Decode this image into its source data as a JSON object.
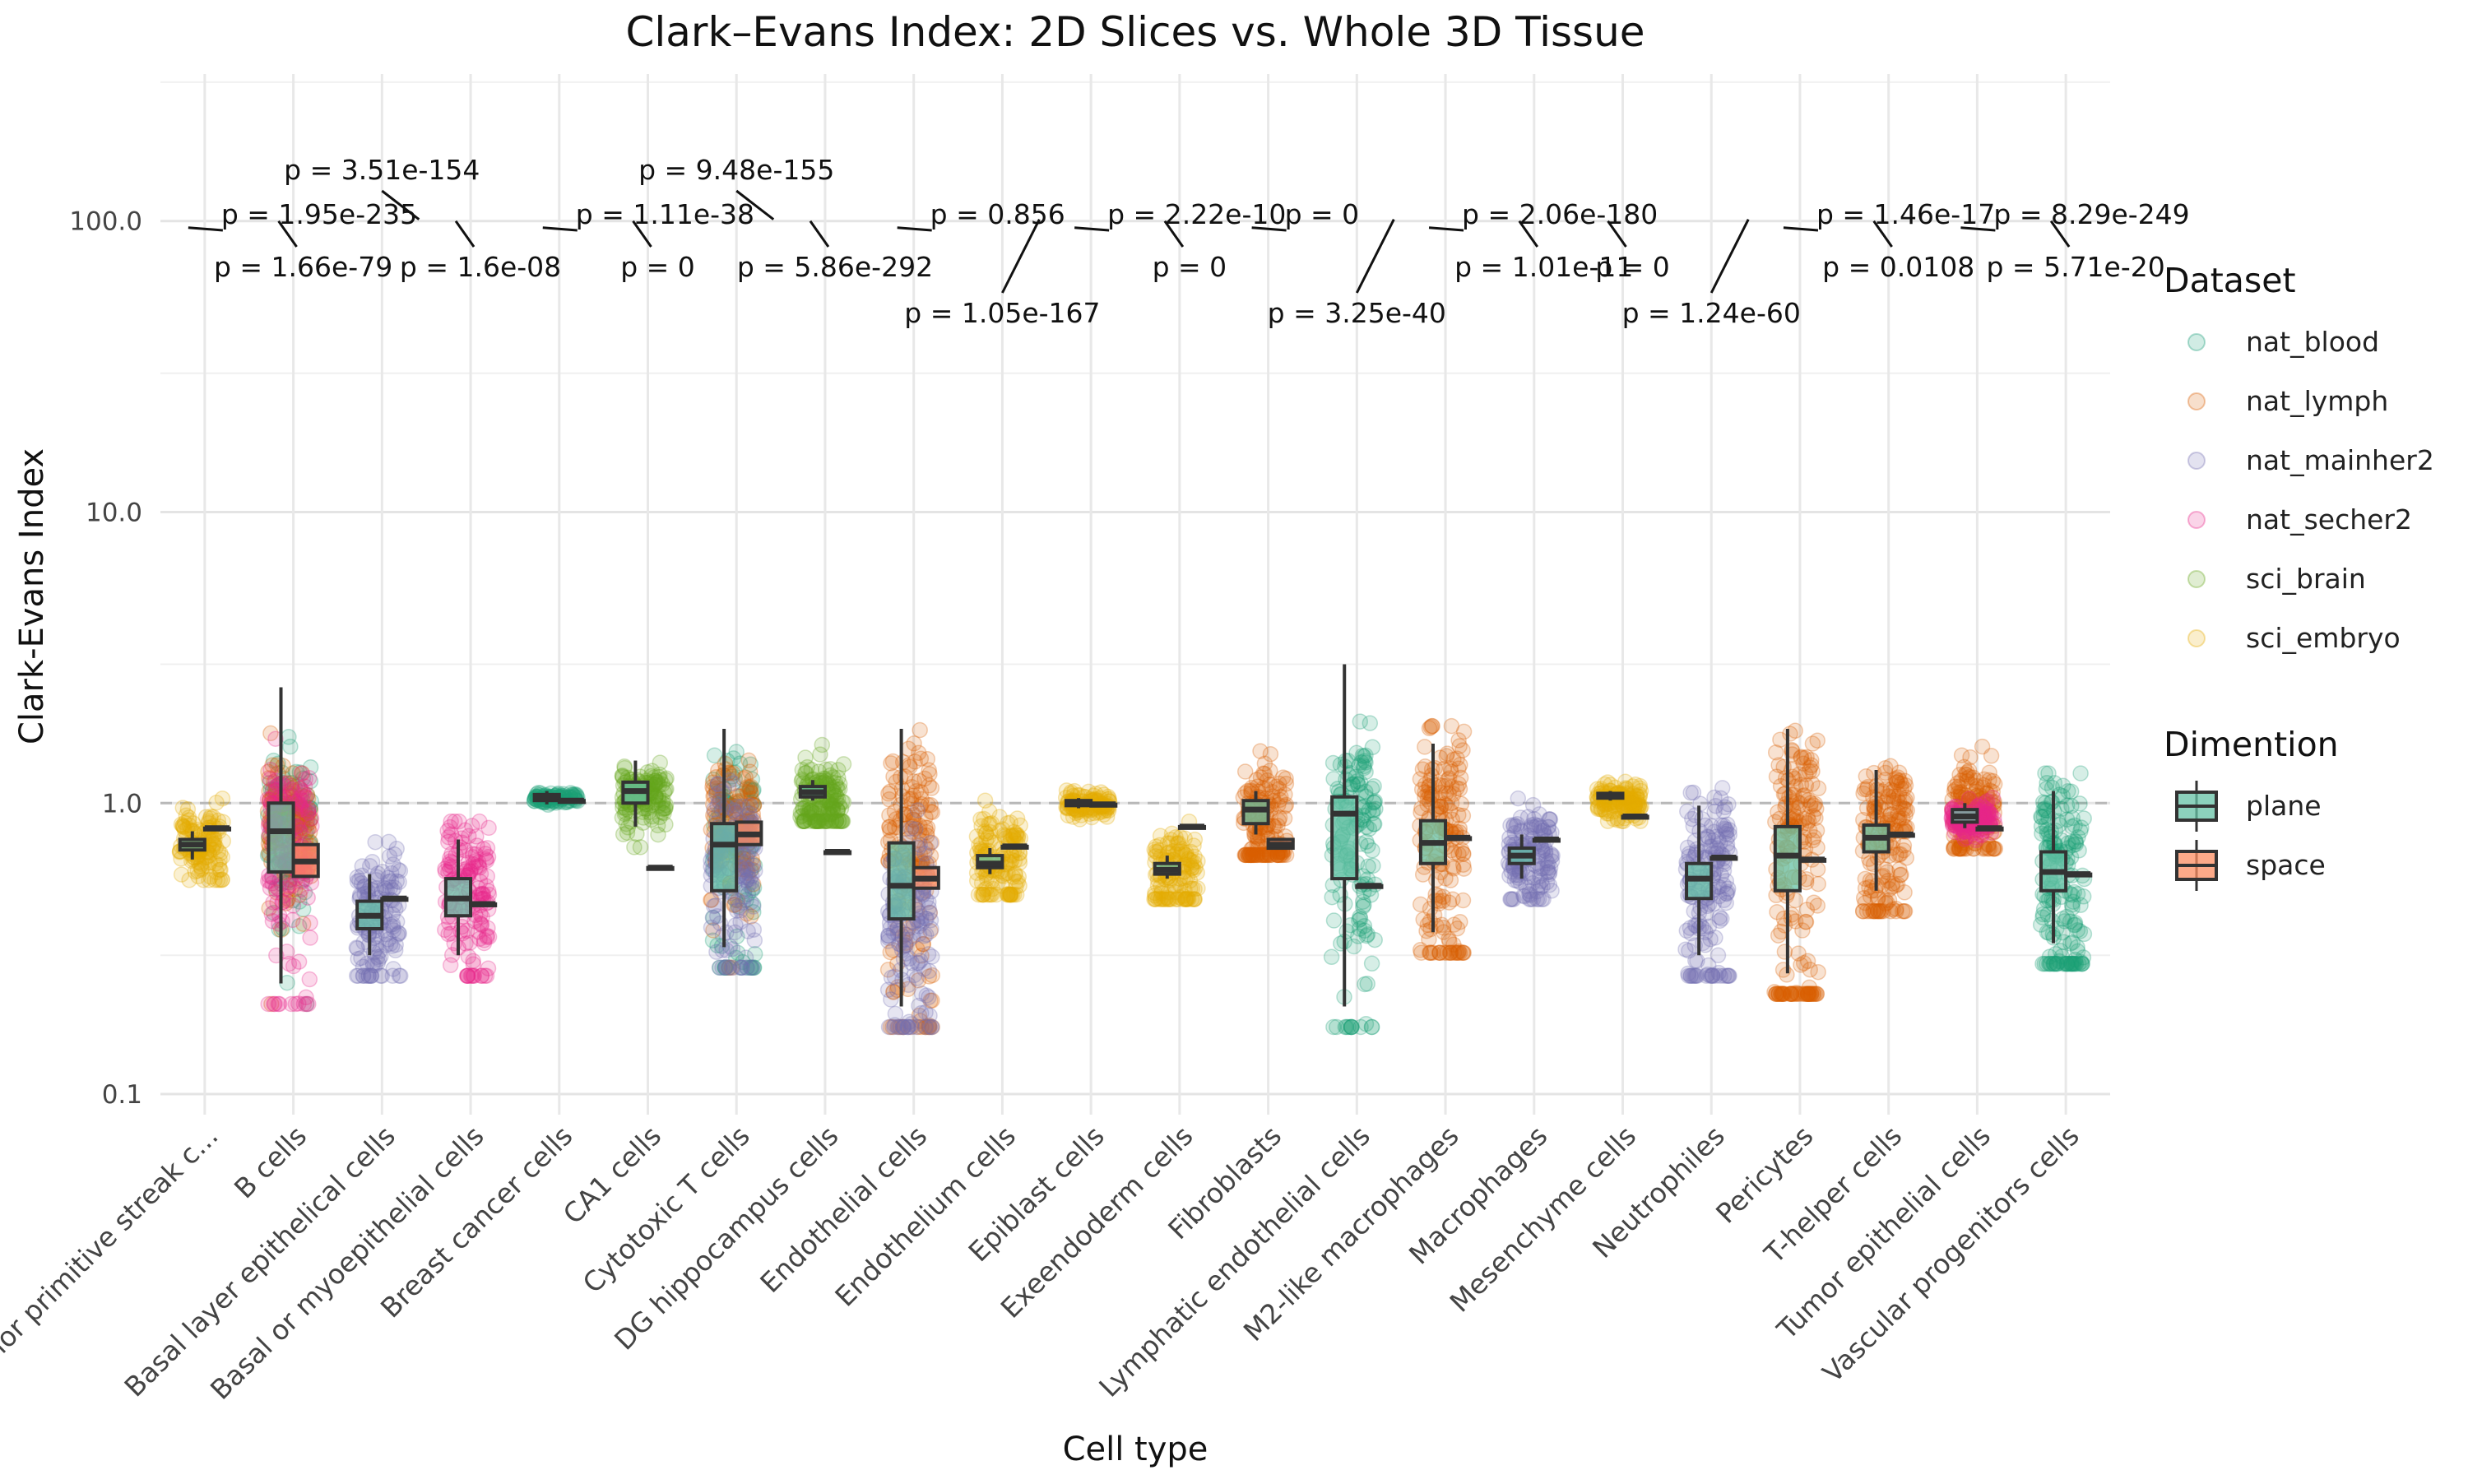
{
  "chart_data": {
    "type": "boxplot",
    "title": "Clark–Evans Index: 2D Slices vs. Whole 3D Tissue",
    "xlabel": "Cell type",
    "ylabel": "Clark-Evans Index",
    "y_scale": "log10",
    "ylim": [
      0.085,
      320
    ],
    "y_ticks": [
      0.1,
      1.0,
      10.0,
      100.0
    ],
    "y_tick_labels": [
      "0.1",
      "1.0",
      "10.0",
      "100.0"
    ],
    "reference_line": 1.0,
    "grid": true,
    "legend_position": "right",
    "colors": {
      "nat_blood": "#1b9e77",
      "nat_lymph": "#d95f02",
      "nat_mainher2": "#7570b3",
      "nat_secher2": "#e7298a",
      "sci_brain": "#66a61e",
      "sci_embryo": "#e6ab02",
      "plane": "#66c2a5",
      "space": "#fc8d62"
    },
    "legends": [
      {
        "title": "Dataset",
        "kind": "point",
        "entries": [
          "nat_blood",
          "nat_lymph",
          "nat_mainher2",
          "nat_secher2",
          "sci_brain",
          "sci_embryo"
        ]
      },
      {
        "title": "Dimention",
        "kind": "box",
        "entries": [
          "plane",
          "space"
        ]
      }
    ],
    "categories": [
      {
        "label": "Anterior primitive streak c...",
        "datasets": [
          {
            "d": "sci_embryo",
            "c": 0.72,
            "s": 0.12,
            "n": 130
          }
        ],
        "plane": [
          0.64,
          0.69,
          0.72,
          0.75,
          0.8
        ],
        "space": [
          0.82,
          0.82,
          0.82,
          0.82,
          0.82
        ],
        "pvalue": "p = 1.95e-235",
        "p_tier": "mid"
      },
      {
        "label": "B cells",
        "datasets": [
          {
            "d": "nat_blood",
            "c": 0.85,
            "s": 0.28,
            "n": 110
          },
          {
            "d": "nat_lymph",
            "c": 0.9,
            "s": 0.22,
            "n": 130
          },
          {
            "d": "nat_secher2",
            "c": 0.68,
            "s": 0.3,
            "n": 150
          }
        ],
        "plane": [
          0.24,
          0.58,
          0.8,
          1.0,
          2.5
        ],
        "space": [
          0.56,
          0.56,
          0.63,
          0.72,
          0.72
        ],
        "pvalue": "p = 1.66e-79",
        "p_tier": "low"
      },
      {
        "label": "Basal layer epithelical cells",
        "datasets": [
          {
            "d": "nat_mainher2",
            "c": 0.4,
            "s": 0.14,
            "n": 140
          }
        ],
        "plane": [
          0.3,
          0.37,
          0.41,
          0.46,
          0.57
        ],
        "space": [
          0.47,
          0.47,
          0.47,
          0.47,
          0.47
        ],
        "pvalue": "p = 3.51e-154",
        "p_tier": "high"
      },
      {
        "label": "Basal or myoepithelial cells",
        "datasets": [
          {
            "d": "nat_secher2",
            "c": 0.47,
            "s": 0.18,
            "n": 150
          }
        ],
        "plane": [
          0.3,
          0.41,
          0.47,
          0.55,
          0.75
        ],
        "space": [
          0.45,
          0.45,
          0.45,
          0.45,
          0.45
        ],
        "pvalue": "p = 1.6e-08",
        "p_tier": "low"
      },
      {
        "label": "Breast cancer cells",
        "datasets": [
          {
            "d": "nat_blood",
            "c": 1.04,
            "s": 0.025,
            "n": 90
          }
        ],
        "plane": [
          0.99,
          1.02,
          1.04,
          1.07,
          1.1
        ],
        "space": [
          1.02,
          1.02,
          1.02,
          1.02,
          1.02
        ],
        "pvalue": "p = 1.11e-38",
        "p_tier": "mid"
      },
      {
        "label": "CA1 cells",
        "datasets": [
          {
            "d": "sci_brain",
            "c": 1.05,
            "s": 0.14,
            "n": 140
          }
        ],
        "plane": [
          0.83,
          1.0,
          1.1,
          1.18,
          1.4
        ],
        "space": [
          0.6,
          0.6,
          0.6,
          0.6,
          0.6
        ],
        "pvalue": "p = 0",
        "p_tier": "low"
      },
      {
        "label": "Cytotoxic T cells",
        "datasets": [
          {
            "d": "nat_blood",
            "c": 0.75,
            "s": 0.35,
            "n": 110
          },
          {
            "d": "nat_lymph",
            "c": 0.85,
            "s": 0.25,
            "n": 130
          },
          {
            "d": "nat_mainher2",
            "c": 0.62,
            "s": 0.22,
            "n": 150
          }
        ],
        "plane": [
          0.32,
          0.5,
          0.72,
          0.85,
          1.8
        ],
        "space": [
          0.72,
          0.72,
          0.78,
          0.86,
          0.86
        ],
        "pvalue": "p = 9.48e-155",
        "p_tier": "high"
      },
      {
        "label": "DG hippocampus cells",
        "datasets": [
          {
            "d": "sci_brain",
            "c": 1.0,
            "s": 0.18,
            "n": 150
          }
        ],
        "plane": [
          1.02,
          1.05,
          1.09,
          1.14,
          1.2
        ],
        "space": [
          0.68,
          0.68,
          0.68,
          0.68,
          0.68
        ],
        "pvalue": "p = 5.86e-292",
        "p_tier": "low"
      },
      {
        "label": "Endothelial cells",
        "datasets": [
          {
            "d": "nat_lymph",
            "c": 0.75,
            "s": 0.38,
            "n": 170
          },
          {
            "d": "nat_mainher2",
            "c": 0.4,
            "s": 0.16,
            "n": 150
          }
        ],
        "plane": [
          0.2,
          0.4,
          0.52,
          0.73,
          1.8
        ],
        "space": [
          0.51,
          0.51,
          0.55,
          0.6,
          0.6
        ],
        "pvalue": "p = 0.856",
        "p_tier": "mid"
      },
      {
        "label": "Endothelium cells",
        "datasets": [
          {
            "d": "sci_embryo",
            "c": 0.62,
            "s": 0.14,
            "n": 140
          }
        ],
        "plane": [
          0.57,
          0.6,
          0.62,
          0.66,
          0.7
        ],
        "space": [
          0.71,
          0.71,
          0.71,
          0.71,
          0.71
        ],
        "pvalue": "p = 1.05e-167",
        "p_tier": "lowest"
      },
      {
        "label": "Epiblast cells",
        "datasets": [
          {
            "d": "sci_embryo",
            "c": 0.99,
            "s": 0.05,
            "n": 110
          }
        ],
        "plane": [
          0.96,
          0.98,
          1.0,
          1.02,
          1.04
        ],
        "space": [
          0.99,
          0.99,
          0.99,
          0.99,
          0.99
        ],
        "pvalue": "p = 2.22e-10",
        "p_tier": "mid"
      },
      {
        "label": "Exeendoderm cells",
        "datasets": [
          {
            "d": "sci_embryo",
            "c": 0.58,
            "s": 0.1,
            "n": 130
          }
        ],
        "plane": [
          0.55,
          0.57,
          0.59,
          0.62,
          0.66
        ],
        "space": [
          0.83,
          0.83,
          0.83,
          0.83,
          0.83
        ],
        "pvalue": "p = 0",
        "p_tier": "low"
      },
      {
        "label": "Fibroblasts",
        "datasets": [
          {
            "d": "nat_lymph",
            "c": 0.82,
            "s": 0.26,
            "n": 160
          }
        ],
        "plane": [
          0.78,
          0.85,
          0.95,
          1.02,
          1.1
        ],
        "space": [
          0.7,
          0.7,
          0.72,
          0.75,
          0.75
        ],
        "pvalue": "p = 0",
        "p_tier": "mid"
      },
      {
        "label": "Lymphatic endothelial cells",
        "datasets": [
          {
            "d": "nat_blood",
            "c": 0.75,
            "s": 0.45,
            "n": 150
          }
        ],
        "plane": [
          0.2,
          0.55,
          0.92,
          1.05,
          3.0
        ],
        "space": [
          0.52,
          0.52,
          0.52,
          0.52,
          0.52
        ],
        "pvalue": "p = 3.25e-40",
        "p_tier": "lowest"
      },
      {
        "label": "M2-like macrophages",
        "datasets": [
          {
            "d": "nat_lymph",
            "c": 0.78,
            "s": 0.42,
            "n": 180
          }
        ],
        "plane": [
          0.36,
          0.62,
          0.73,
          0.87,
          1.6
        ],
        "space": [
          0.76,
          0.76,
          0.76,
          0.76,
          0.76
        ],
        "pvalue": "p = 2.06e-180",
        "p_tier": "mid"
      },
      {
        "label": "Macrophages",
        "datasets": [
          {
            "d": "nat_mainher2",
            "c": 0.66,
            "s": 0.13,
            "n": 150
          }
        ],
        "plane": [
          0.55,
          0.62,
          0.66,
          0.7,
          0.78
        ],
        "space": [
          0.75,
          0.75,
          0.75,
          0.75,
          0.75
        ],
        "pvalue": "p = 1.01e-11",
        "p_tier": "low"
      },
      {
        "label": "Mesenchyme cells",
        "datasets": [
          {
            "d": "sci_embryo",
            "c": 1.02,
            "s": 0.08,
            "n": 130
          }
        ],
        "plane": [
          1.02,
          1.04,
          1.06,
          1.08,
          1.1
        ],
        "space": [
          0.9,
          0.9,
          0.9,
          0.9,
          0.9
        ],
        "pvalue": "p = 0",
        "p_tier": "low"
      },
      {
        "label": "Neutrophiles",
        "datasets": [
          {
            "d": "nat_mainher2",
            "c": 0.56,
            "s": 0.22,
            "n": 170
          }
        ],
        "plane": [
          0.3,
          0.47,
          0.55,
          0.62,
          0.98
        ],
        "space": [
          0.65,
          0.65,
          0.65,
          0.65,
          0.65
        ],
        "pvalue": "p = 1.24e-60",
        "p_tier": "lowest"
      },
      {
        "label": "Pericytes",
        "datasets": [
          {
            "d": "nat_lymph",
            "c": 0.68,
            "s": 0.45,
            "n": 190
          }
        ],
        "plane": [
          0.26,
          0.5,
          0.66,
          0.83,
          1.8
        ],
        "space": [
          0.64,
          0.64,
          0.64,
          0.64,
          0.64
        ],
        "pvalue": "p = 1.46e-17",
        "p_tier": "mid"
      },
      {
        "label": "T-helper cells",
        "datasets": [
          {
            "d": "nat_lymph",
            "c": 0.78,
            "s": 0.28,
            "n": 170
          }
        ],
        "plane": [
          0.5,
          0.68,
          0.76,
          0.84,
          1.3
        ],
        "space": [
          0.78,
          0.78,
          0.78,
          0.78,
          0.78
        ],
        "pvalue": "p = 0.0108",
        "p_tier": "low"
      },
      {
        "label": "Tumor epithelial cells",
        "datasets": [
          {
            "d": "nat_lymph",
            "c": 0.95,
            "s": 0.22,
            "n": 150
          },
          {
            "d": "nat_secher2",
            "c": 0.88,
            "s": 0.06,
            "n": 130
          }
        ],
        "plane": [
          0.82,
          0.86,
          0.9,
          0.95,
          1.0
        ],
        "space": [
          0.82,
          0.82,
          0.82,
          0.82,
          0.82
        ],
        "pvalue": "p = 8.29e-249",
        "p_tier": "mid"
      },
      {
        "label": "Vascular progenitors cells",
        "datasets": [
          {
            "d": "nat_blood",
            "c": 0.6,
            "s": 0.3,
            "n": 180
          }
        ],
        "plane": [
          0.33,
          0.5,
          0.58,
          0.68,
          1.1
        ],
        "space": [
          0.57,
          0.57,
          0.57,
          0.57,
          0.57
        ],
        "pvalue": "p = 5.71e-20",
        "p_tier": "low"
      }
    ]
  }
}
